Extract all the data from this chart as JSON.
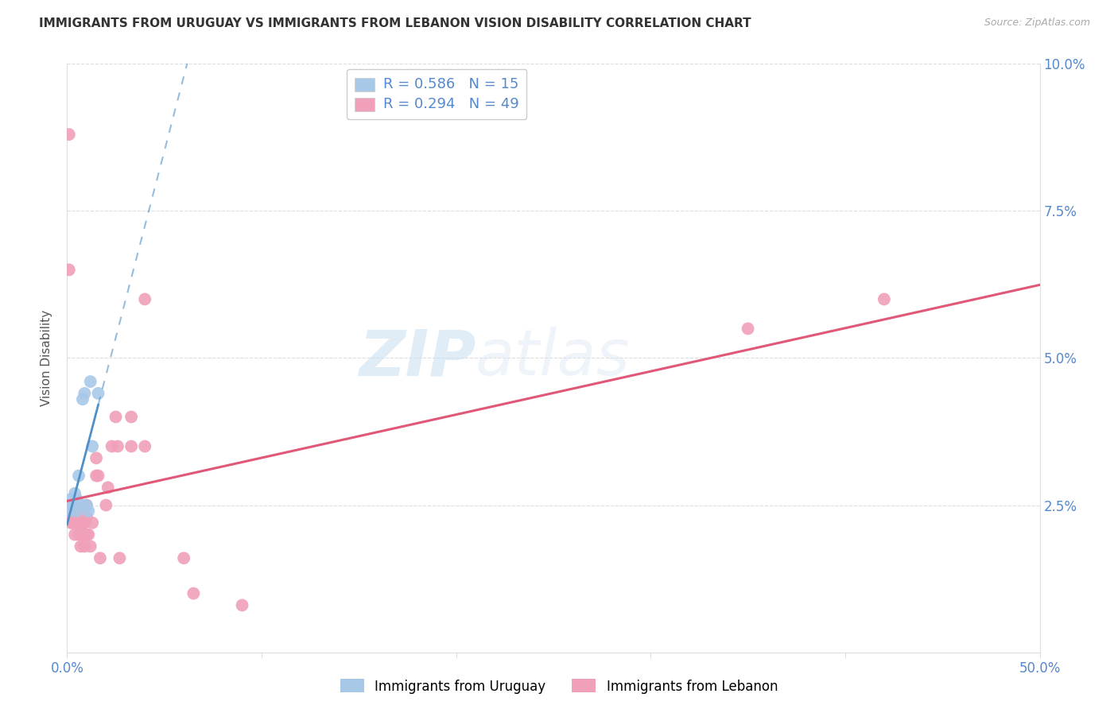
{
  "title": "IMMIGRANTS FROM URUGUAY VS IMMIGRANTS FROM LEBANON VISION DISABILITY CORRELATION CHART",
  "source": "Source: ZipAtlas.com",
  "ylabel": "Vision Disability",
  "xlim": [
    0.0,
    0.5
  ],
  "ylim": [
    0.0,
    0.1
  ],
  "xticks": [
    0.0,
    0.1,
    0.2,
    0.3,
    0.4,
    0.5
  ],
  "xticklabels": [
    "0.0%",
    "",
    "",
    "",
    "",
    "50.0%"
  ],
  "yticks": [
    0.0,
    0.025,
    0.05,
    0.075,
    0.1
  ],
  "yticklabels": [
    "",
    "2.5%",
    "5.0%",
    "7.5%",
    "10.0%"
  ],
  "uruguay_color": "#a8c8e8",
  "lebanon_color": "#f0a0b8",
  "uruguay_line_color": "#5090c8",
  "lebanon_line_color": "#e05878",
  "uruguay_r": 0.586,
  "uruguay_n": 15,
  "lebanon_r": 0.294,
  "lebanon_n": 49,
  "legend_label_uruguay": "Immigrants from Uruguay",
  "legend_label_lebanon": "Immigrants from Lebanon",
  "watermark_zip": "ZIP",
  "watermark_atlas": "atlas",
  "tick_color": "#5588cc",
  "grid_color": "#dddddd",
  "uruguay_scatter_x": [
    0.001,
    0.002,
    0.003,
    0.004,
    0.005,
    0.005,
    0.006,
    0.007,
    0.008,
    0.009,
    0.01,
    0.011,
    0.012,
    0.013,
    0.016
  ],
  "uruguay_scatter_y": [
    0.024,
    0.026,
    0.025,
    0.027,
    0.024,
    0.026,
    0.03,
    0.025,
    0.043,
    0.044,
    0.025,
    0.024,
    0.046,
    0.035,
    0.044
  ],
  "lebanon_scatter_x": [
    0.001,
    0.001,
    0.001,
    0.002,
    0.002,
    0.002,
    0.003,
    0.003,
    0.004,
    0.004,
    0.004,
    0.005,
    0.005,
    0.006,
    0.006,
    0.006,
    0.007,
    0.007,
    0.007,
    0.008,
    0.008,
    0.009,
    0.009,
    0.009,
    0.01,
    0.01,
    0.01,
    0.011,
    0.012,
    0.013,
    0.015,
    0.015,
    0.016,
    0.017,
    0.02,
    0.021,
    0.023,
    0.025,
    0.026,
    0.027,
    0.033,
    0.033,
    0.04,
    0.04,
    0.06,
    0.065,
    0.09,
    0.35,
    0.42
  ],
  "lebanon_scatter_y": [
    0.088,
    0.065,
    0.025,
    0.023,
    0.022,
    0.025,
    0.024,
    0.022,
    0.023,
    0.024,
    0.02,
    0.022,
    0.024,
    0.023,
    0.02,
    0.022,
    0.02,
    0.02,
    0.018,
    0.024,
    0.022,
    0.022,
    0.02,
    0.018,
    0.025,
    0.023,
    0.02,
    0.02,
    0.018,
    0.022,
    0.033,
    0.03,
    0.03,
    0.016,
    0.025,
    0.028,
    0.035,
    0.04,
    0.035,
    0.016,
    0.035,
    0.04,
    0.035,
    0.06,
    0.016,
    0.01,
    0.008,
    0.055,
    0.06
  ]
}
